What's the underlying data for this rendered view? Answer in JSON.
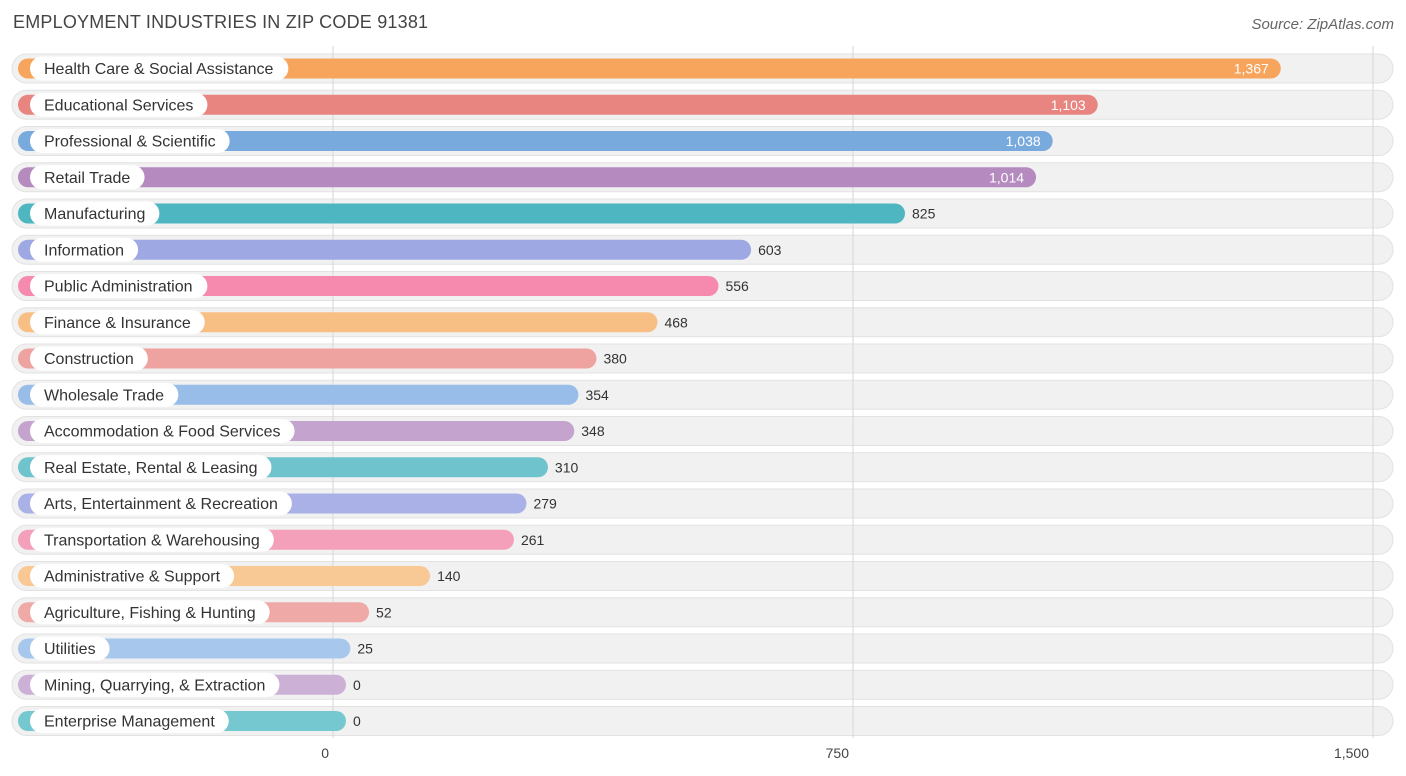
{
  "title": "EMPLOYMENT INDUSTRIES IN ZIP CODE 91381",
  "source": "Source: ZipAtlas.com",
  "chart_data": {
    "type": "bar",
    "orientation": "horizontal",
    "categories": [
      "Health Care & Social Assistance",
      "Educational Services",
      "Professional & Scientific",
      "Retail Trade",
      "Manufacturing",
      "Information",
      "Public Administration",
      "Finance & Insurance",
      "Construction",
      "Wholesale Trade",
      "Accommodation & Food Services",
      "Real Estate, Rental & Leasing",
      "Arts, Entertainment & Recreation",
      "Transportation & Warehousing",
      "Administrative & Support",
      "Agriculture, Fishing & Hunting",
      "Utilities",
      "Mining, Quarrying, & Extraction",
      "Enterprise Management"
    ],
    "values": [
      1367,
      1103,
      1038,
      1014,
      825,
      603,
      556,
      468,
      380,
      354,
      348,
      310,
      279,
      261,
      140,
      52,
      25,
      0,
      0
    ],
    "value_labels": [
      "1,367",
      "1,103",
      "1,038",
      "1,014",
      "825",
      "603",
      "556",
      "468",
      "380",
      "354",
      "348",
      "310",
      "279",
      "261",
      "140",
      "52",
      "25",
      "0",
      "0"
    ],
    "colors": [
      "#f7a55c",
      "#e88580",
      "#79aade",
      "#b48abf",
      "#4db6c0",
      "#9ea8e3",
      "#f68aae",
      "#f8bf85",
      "#eea3a1",
      "#97bde8",
      "#c4a4cf",
      "#6fc3cc",
      "#a9b1e6",
      "#f4a0bb",
      "#f9c995",
      "#efaaa7",
      "#a7c7ed",
      "#cdb0d6",
      "#75c8d0"
    ],
    "xlim": [
      0,
      1500
    ],
    "xticks": [
      0,
      750,
      1500
    ],
    "xtick_labels": [
      "0",
      "750",
      "1,500"
    ],
    "grid": true
  }
}
